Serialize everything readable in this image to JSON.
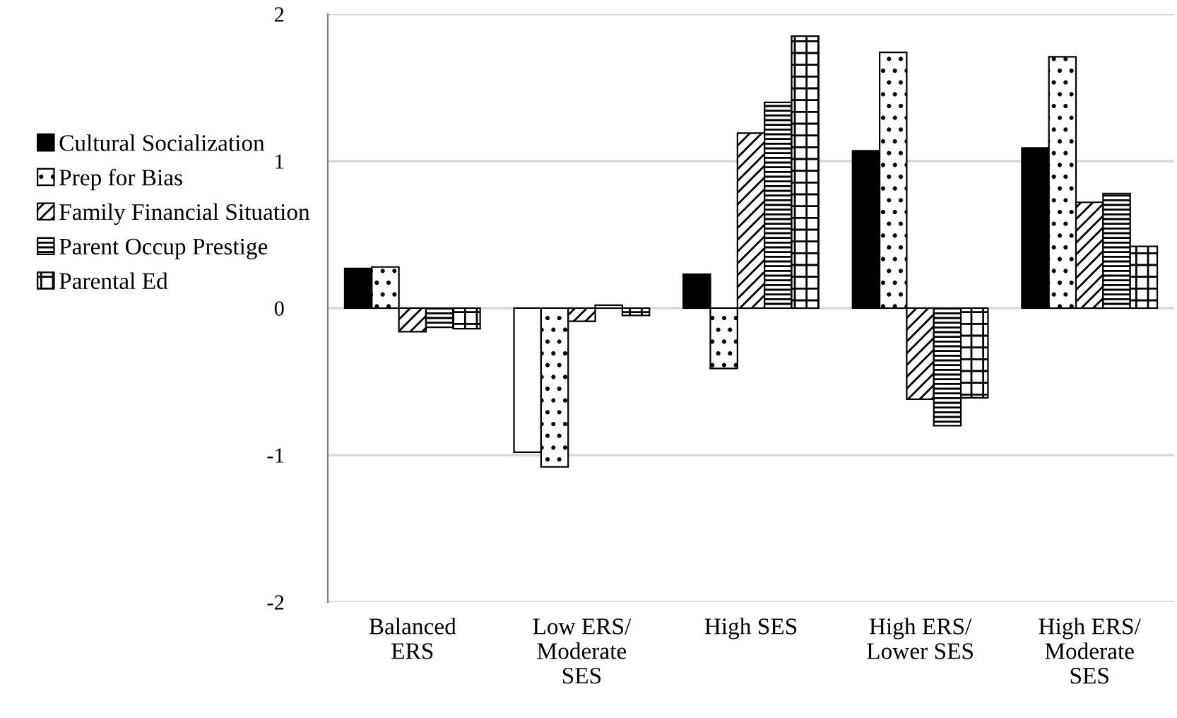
{
  "chart_data": {
    "type": "bar",
    "categories": [
      "Balanced\nERS",
      "Low ERS/\nModerate\nSES",
      "High SES",
      "High ERS/\nLower SES",
      "High ERS/\nModerate\nSES"
    ],
    "series": [
      {
        "name": "Cultural Socialization",
        "color": "#000000",
        "colors": [
          "#000000",
          "#ffffff",
          "#000000",
          "#000000",
          "#000000"
        ],
        "values": [
          0.27,
          -0.98,
          0.23,
          1.07,
          1.09
        ]
      },
      {
        "name": "Prep for Bias",
        "color": "#000000",
        "values": [
          0.28,
          -1.08,
          -0.41,
          1.74,
          1.71
        ]
      },
      {
        "name": "Family Financial Situation",
        "color": "#000000",
        "values": [
          -0.16,
          -0.09,
          1.19,
          -0.62,
          0.72
        ]
      },
      {
        "name": "Parent Occup Prestige",
        "color": "#000000",
        "values": [
          -0.13,
          0.02,
          1.4,
          -0.8,
          0.78
        ]
      },
      {
        "name": "Parental Ed",
        "color": "#000000",
        "values": [
          -0.14,
          -0.05,
          1.85,
          -0.61,
          0.42
        ]
      }
    ],
    "ylim": [
      -2,
      2
    ],
    "yticks": [
      -2,
      -1,
      0,
      1,
      2
    ],
    "grid": "y",
    "legend": "left"
  }
}
